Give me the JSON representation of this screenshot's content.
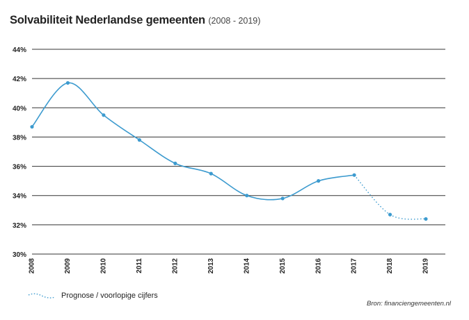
{
  "title": "Solvabiliteit Nederlandse gemeenten",
  "subtitle": "(2008 - 2019)",
  "legend_label": "Prognose / voorlopige cijfers",
  "source": "Bron: financiengemeenten.nl",
  "colors": {
    "series": "#3d9bcf",
    "grid": "#333333",
    "text": "#222222"
  },
  "chart_data": {
    "type": "line",
    "title": "Solvabiliteit Nederlandse gemeenten",
    "subtitle": "(2008 - 2019)",
    "x": [
      "2008",
      "2009",
      "2010",
      "2011",
      "2012",
      "2013",
      "2014",
      "2015",
      "2016",
      "2017",
      "2018",
      "2019"
    ],
    "values": [
      38.7,
      41.7,
      39.5,
      37.8,
      36.2,
      35.5,
      34.0,
      33.8,
      35.0,
      35.4,
      32.7,
      32.4
    ],
    "forecast_from_index": 9,
    "ylim": [
      30,
      44
    ],
    "yticks": [
      30,
      32,
      34,
      36,
      38,
      40,
      42,
      44
    ],
    "ytick_labels": [
      "30%",
      "32%",
      "34%",
      "36%",
      "38%",
      "40%",
      "42%",
      "44%"
    ],
    "grid": true,
    "legend": {
      "entries": [
        "Prognose / voorlopige cijfers"
      ],
      "placement": "bottom-left"
    },
    "source": "Bron: financiengemeenten.nl"
  }
}
